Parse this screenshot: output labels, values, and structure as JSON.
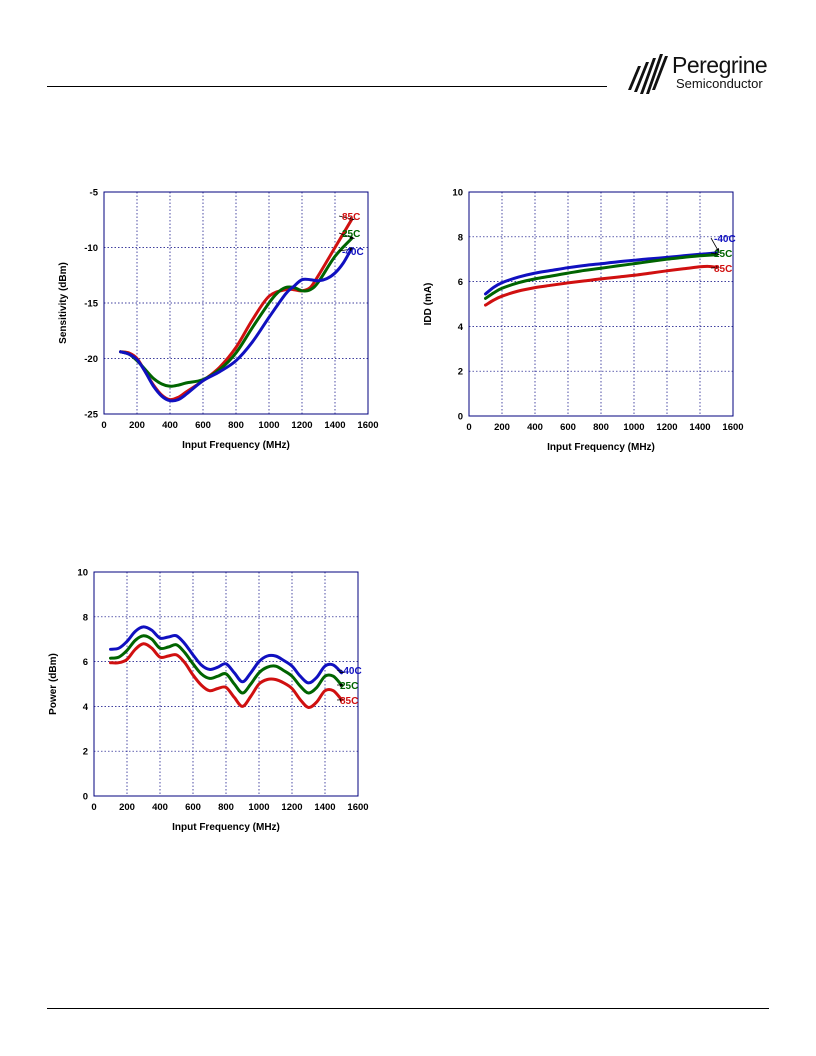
{
  "header": {
    "logo": {
      "name": "Peregrine",
      "subtitle": "Semiconductor",
      "icon": "peregrine-stripes-logo"
    }
  },
  "colors": {
    "grid": "#00007f",
    "frame": "#00007f",
    "m40": "#1010c0",
    "p25": "#006400",
    "p85": "#d01010",
    "text": "#000000"
  },
  "charts": [
    {
      "id": "sensitivity",
      "chart_data": {
        "type": "line",
        "xlabel": "Input Frequency (MHz)",
        "ylabel": "Sensitivity (dBm)",
        "xlim": [
          0,
          1600
        ],
        "ylim": [
          -25,
          -5
        ],
        "xticks": [
          0,
          200,
          400,
          600,
          800,
          1000,
          1200,
          1400,
          1600
        ],
        "yticks": [
          -25,
          -20,
          -15,
          -10,
          -5
        ],
        "grid": true,
        "series": [
          {
            "name": "85C",
            "color": "#d01010",
            "x": [
              100,
              150,
              200,
              250,
              300,
              350,
              400,
              450,
              500,
              600,
              700,
              800,
              900,
              1000,
              1100,
              1150,
              1200,
              1250,
              1300,
              1400,
              1500
            ],
            "y": [
              -19.4,
              -19.5,
              -20.0,
              -21.2,
              -22.4,
              -23.3,
              -23.7,
              -23.5,
              -23.0,
              -22.0,
              -20.8,
              -19.0,
              -16.5,
              -14.4,
              -13.8,
              -13.8,
              -13.9,
              -13.6,
              -12.5,
              -10.0,
              -7.5
            ]
          },
          {
            "name": "25C",
            "color": "#006400",
            "x": [
              100,
              150,
              200,
              250,
              300,
              350,
              400,
              450,
              500,
              600,
              700,
              800,
              900,
              1000,
              1050,
              1100,
              1150,
              1200,
              1250,
              1300,
              1400,
              1500
            ],
            "y": [
              -19.4,
              -19.6,
              -20.2,
              -21.0,
              -21.8,
              -22.3,
              -22.5,
              -22.4,
              -22.2,
              -21.9,
              -21.0,
              -19.5,
              -17.2,
              -15.0,
              -14.1,
              -13.6,
              -13.6,
              -13.9,
              -13.8,
              -13.1,
              -10.8,
              -9.2
            ]
          },
          {
            "name": "-40C",
            "color": "#1010c0",
            "x": [
              100,
              150,
              200,
              250,
              300,
              350,
              400,
              450,
              500,
              600,
              700,
              800,
              900,
              1000,
              1100,
              1150,
              1200,
              1250,
              1300,
              1350,
              1400,
              1450,
              1500
            ],
            "y": [
              -19.4,
              -19.6,
              -20.1,
              -21.2,
              -22.5,
              -23.4,
              -23.8,
              -23.7,
              -23.2,
              -22.0,
              -21.2,
              -20.2,
              -18.5,
              -16.3,
              -14.2,
              -13.5,
              -12.9,
              -12.9,
              -13.0,
              -12.8,
              -12.3,
              -11.4,
              -10.1
            ]
          }
        ],
        "legend": [
          {
            "label": "85C",
            "color": "#d01010"
          },
          {
            "label": "25C",
            "color": "#006400"
          },
          {
            "label": "-40C",
            "color": "#1010c0"
          }
        ]
      }
    },
    {
      "id": "idd",
      "chart_data": {
        "type": "line",
        "xlabel": "Input Frequency (MHz)",
        "ylabel": "IDD (mA)",
        "xlim": [
          0,
          1600
        ],
        "ylim": [
          0,
          10
        ],
        "xticks": [
          0,
          200,
          400,
          600,
          800,
          1000,
          1200,
          1400,
          1600
        ],
        "yticks": [
          0,
          2,
          4,
          6,
          8,
          10
        ],
        "grid": true,
        "series": [
          {
            "name": "-40C",
            "color": "#1010c0",
            "x": [
              100,
              150,
              200,
              300,
              400,
              500,
              600,
              700,
              800,
              900,
              1000,
              1100,
              1200,
              1300,
              1400,
              1500
            ],
            "y": [
              5.45,
              5.75,
              5.95,
              6.2,
              6.38,
              6.5,
              6.62,
              6.72,
              6.8,
              6.88,
              6.95,
              7.02,
              7.08,
              7.15,
              7.22,
              7.28
            ]
          },
          {
            "name": "25C",
            "color": "#006400",
            "x": [
              100,
              150,
              200,
              300,
              400,
              500,
              600,
              700,
              800,
              900,
              1000,
              1100,
              1200,
              1300,
              1400,
              1500
            ],
            "y": [
              5.25,
              5.5,
              5.7,
              5.95,
              6.12,
              6.25,
              6.38,
              6.5,
              6.6,
              6.7,
              6.8,
              6.9,
              7.0,
              7.08,
              7.15,
              7.2
            ]
          },
          {
            "name": "85C",
            "color": "#d01010",
            "x": [
              100,
              150,
              200,
              300,
              400,
              500,
              600,
              700,
              800,
              900,
              1000,
              1100,
              1200,
              1300,
              1400,
              1450,
              1500
            ],
            "y": [
              4.95,
              5.18,
              5.35,
              5.58,
              5.73,
              5.84,
              5.94,
              6.03,
              6.12,
              6.2,
              6.28,
              6.38,
              6.48,
              6.57,
              6.66,
              6.68,
              6.64
            ]
          }
        ],
        "legend": [
          {
            "label": "-40C",
            "color": "#1010c0"
          },
          {
            "label": "25C",
            "color": "#006400"
          },
          {
            "label": "85C",
            "color": "#d01010"
          }
        ]
      }
    },
    {
      "id": "power",
      "chart_data": {
        "type": "line",
        "xlabel": "Input Frequency (MHz)",
        "ylabel": "Power (dBm)",
        "xlim": [
          0,
          1600
        ],
        "ylim": [
          0,
          10
        ],
        "xticks": [
          0,
          200,
          400,
          600,
          800,
          1000,
          1200,
          1400,
          1600
        ],
        "yticks": [
          0,
          2,
          4,
          6,
          8,
          10
        ],
        "grid": true,
        "series": [
          {
            "name": "-40C",
            "color": "#1010c0",
            "x": [
              100,
              150,
              200,
              250,
              300,
              350,
              400,
              450,
              500,
              550,
              600,
              650,
              700,
              750,
              800,
              850,
              900,
              950,
              1000,
              1050,
              1100,
              1150,
              1200,
              1250,
              1300,
              1350,
              1400,
              1450,
              1500
            ],
            "y": [
              6.55,
              6.6,
              6.9,
              7.35,
              7.55,
              7.4,
              7.05,
              7.1,
              7.15,
              6.8,
              6.3,
              5.85,
              5.65,
              5.75,
              5.9,
              5.5,
              5.1,
              5.5,
              6.0,
              6.25,
              6.25,
              6.05,
              5.8,
              5.35,
              5.05,
              5.3,
              5.8,
              5.85,
              5.5
            ]
          },
          {
            "name": "25C",
            "color": "#006400",
            "x": [
              100,
              150,
              200,
              250,
              300,
              350,
              400,
              450,
              500,
              550,
              600,
              650,
              700,
              750,
              800,
              850,
              900,
              950,
              1000,
              1050,
              1100,
              1150,
              1200,
              1250,
              1300,
              1350,
              1400,
              1450,
              1500
            ],
            "y": [
              6.15,
              6.2,
              6.5,
              6.95,
              7.15,
              7.0,
              6.6,
              6.65,
              6.75,
              6.4,
              5.9,
              5.45,
              5.25,
              5.35,
              5.45,
              5.0,
              4.6,
              5.0,
              5.5,
              5.75,
              5.8,
              5.6,
              5.35,
              4.9,
              4.6,
              4.85,
              5.35,
              5.35,
              4.95
            ]
          },
          {
            "name": "85C",
            "color": "#d01010",
            "x": [
              100,
              150,
              200,
              250,
              300,
              350,
              400,
              450,
              500,
              550,
              600,
              650,
              700,
              750,
              800,
              850,
              900,
              950,
              1000,
              1050,
              1100,
              1150,
              1200,
              1250,
              1300,
              1350,
              1400,
              1450,
              1500
            ],
            "y": [
              5.95,
              5.95,
              6.1,
              6.55,
              6.8,
              6.6,
              6.2,
              6.25,
              6.3,
              5.95,
              5.4,
              4.95,
              4.7,
              4.8,
              4.85,
              4.4,
              4.0,
              4.45,
              5.0,
              5.2,
              5.2,
              5.05,
              4.8,
              4.3,
              3.95,
              4.2,
              4.7,
              4.7,
              4.3
            ]
          }
        ],
        "legend": [
          {
            "label": "-40C",
            "color": "#1010c0"
          },
          {
            "label": "25C",
            "color": "#006400"
          },
          {
            "label": "85C",
            "color": "#d01010"
          }
        ]
      }
    }
  ]
}
